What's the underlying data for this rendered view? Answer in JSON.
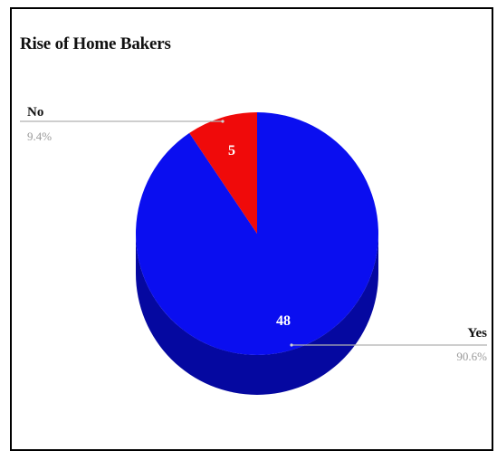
{
  "chart_data": {
    "type": "pie",
    "title": "Rise of Home Bakers",
    "slices": [
      {
        "label": "Yes",
        "value": 48,
        "percent_label": "90.6%",
        "color": "#0a0ef0",
        "side_color": "#0508a0"
      },
      {
        "label": "No",
        "value": 5,
        "percent_label": "9.4%",
        "color": "#f00a0a",
        "side_color": "#a00505"
      }
    ],
    "style": "3d",
    "legend": "none"
  }
}
